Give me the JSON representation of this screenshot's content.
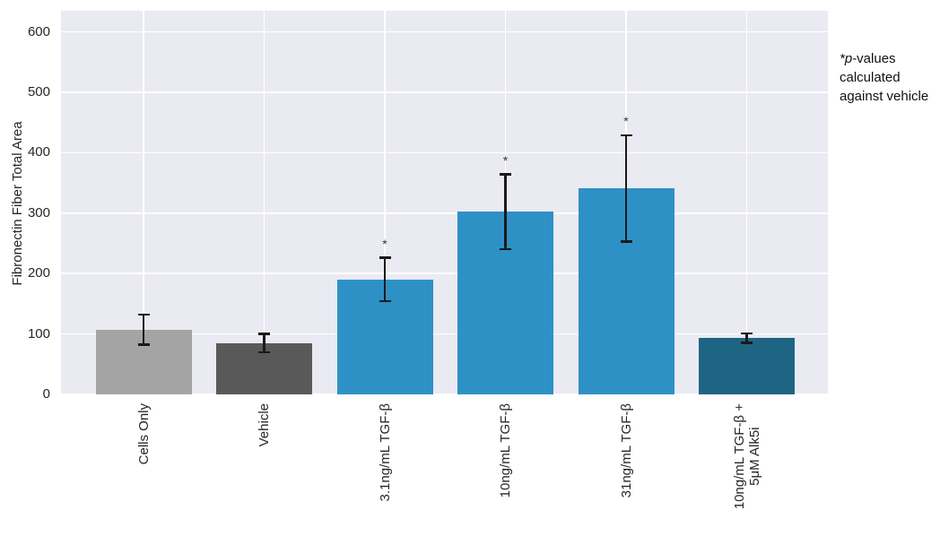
{
  "chart_data": {
    "type": "bar",
    "title": "",
    "xlabel": "",
    "ylabel": "Fibronectin Fiber Total Area",
    "ylim": [
      0,
      635
    ],
    "yticks": [
      0,
      100,
      200,
      300,
      400,
      500,
      600
    ],
    "grid": true,
    "legend": "none",
    "plot_background": "#eaeaf2",
    "categories": [
      "Cells Only",
      "Vehicle",
      "3.1ng/mL TGF-β",
      "10ng/mL TGF-β",
      "31ng/mL TGF-β",
      "10ng/mL TGF-β +\n5μM Alk5i"
    ],
    "values": [
      107,
      85,
      190,
      302,
      341,
      93
    ],
    "errors": [
      25,
      15,
      36,
      62,
      88,
      8
    ],
    "significance": [
      "",
      "",
      "*",
      "*",
      "*",
      ""
    ],
    "bar_colors": [
      "#a4a4a4",
      "#595959",
      "#2e91c5",
      "#2e91c5",
      "#2e91c5",
      "#1e6584"
    ],
    "error_color": "#1a1a1a",
    "annotation": {
      "italic_prefix": "*p",
      "text": "-values calculated against vehicle"
    }
  }
}
